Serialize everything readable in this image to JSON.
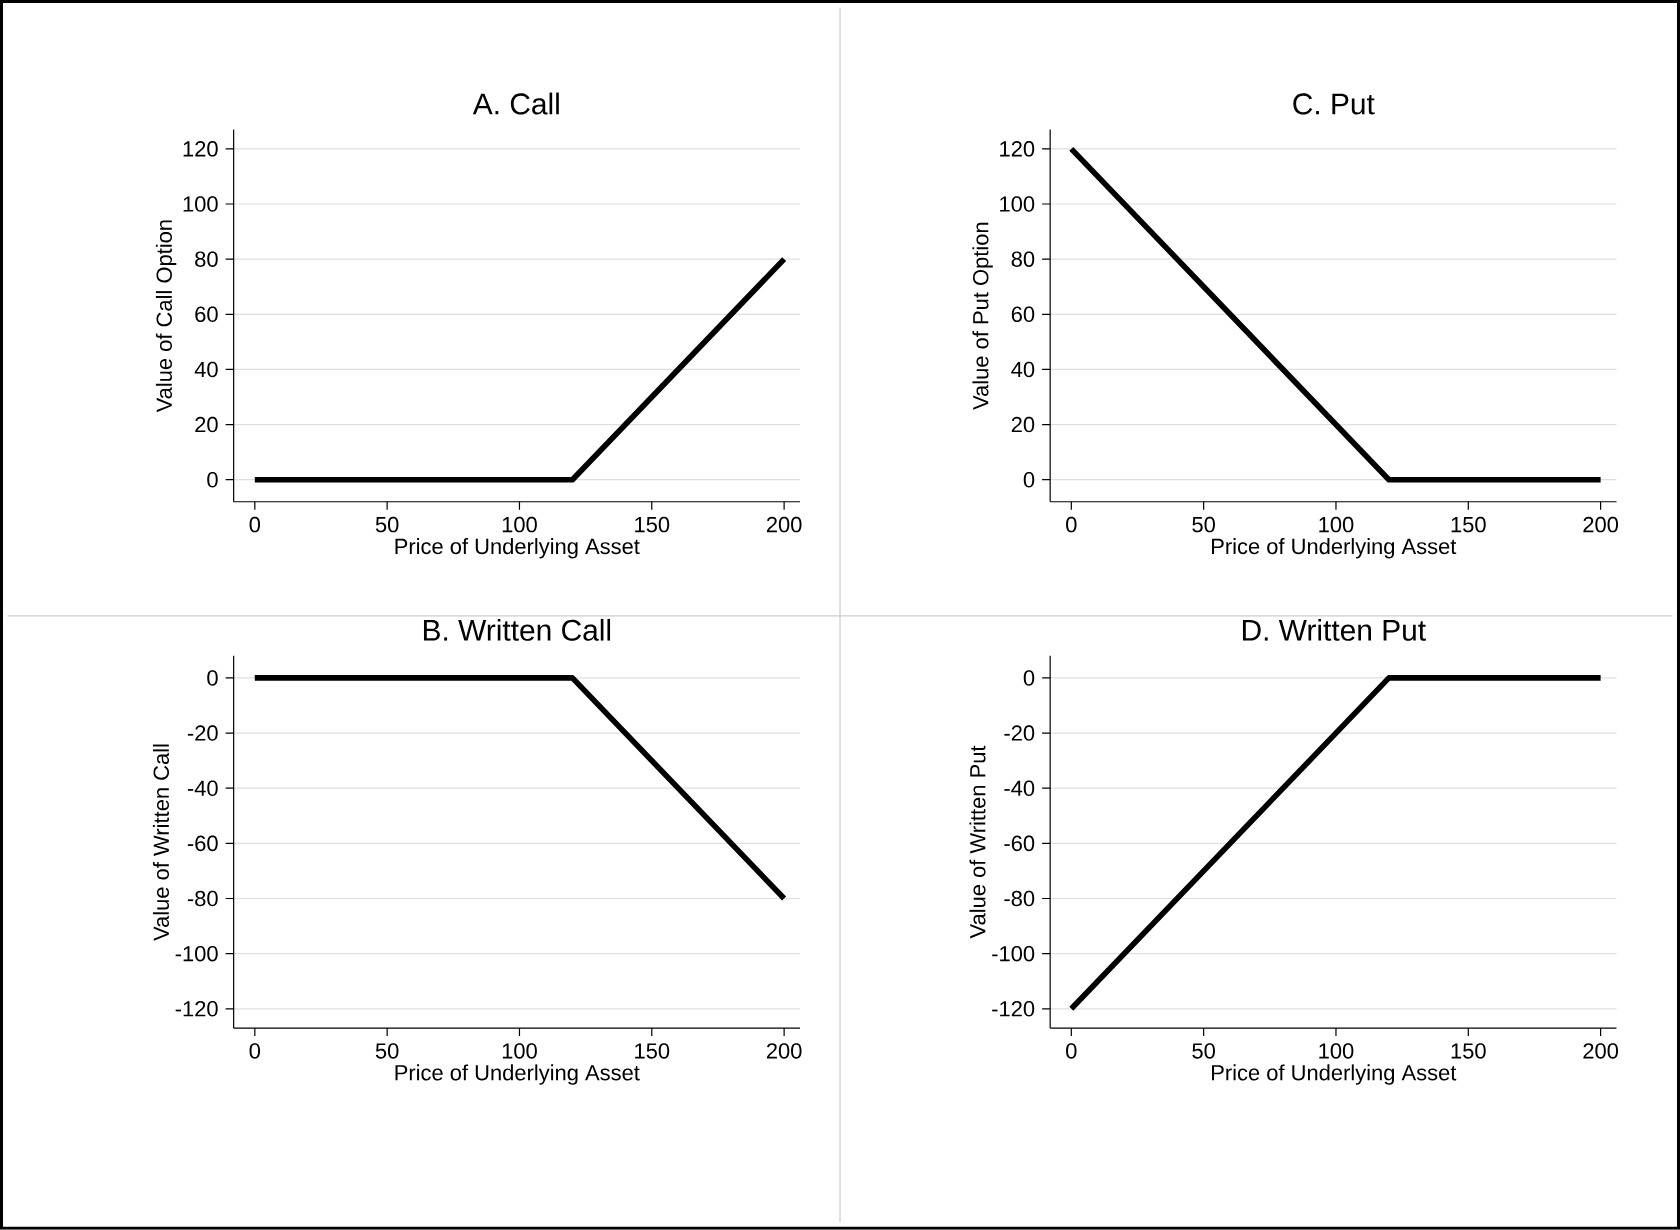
{
  "chart_data": [
    {
      "type": "line",
      "title": "A. Call",
      "xlabel": "Price of Underlying Asset",
      "ylabel": "Value of Call Option",
      "x": [
        0,
        120,
        200
      ],
      "values": [
        0,
        0,
        80
      ],
      "color": "#000000",
      "xlim": [
        -8,
        206
      ],
      "ylim": [
        -8,
        127
      ],
      "xticks": [
        0,
        50,
        100,
        150,
        200
      ],
      "yticks": [
        0,
        20,
        40,
        60,
        80,
        100,
        120
      ],
      "grid": "y",
      "marker": "none",
      "line_style": "solid"
    },
    {
      "type": "line",
      "title": "C. Put",
      "xlabel": "Price of Underlying Asset",
      "ylabel": "Value of Put Option",
      "x": [
        0,
        120,
        200
      ],
      "values": [
        120,
        0,
        0
      ],
      "color": "#000000",
      "xlim": [
        -8,
        206
      ],
      "ylim": [
        -8,
        127
      ],
      "xticks": [
        0,
        50,
        100,
        150,
        200
      ],
      "yticks": [
        0,
        20,
        40,
        60,
        80,
        100,
        120
      ],
      "grid": "y",
      "marker": "none",
      "line_style": "solid"
    },
    {
      "type": "line",
      "title": "B. Written Call",
      "xlabel": "Price of Underlying Asset",
      "ylabel": "Value of Written Call",
      "x": [
        0,
        120,
        200
      ],
      "values": [
        0,
        0,
        -80
      ],
      "color": "#000000",
      "xlim": [
        -8,
        206
      ],
      "ylim": [
        -127,
        8
      ],
      "xticks": [
        0,
        50,
        100,
        150,
        200
      ],
      "yticks": [
        -120,
        -100,
        -80,
        -60,
        -40,
        -20,
        0
      ],
      "grid": "y",
      "marker": "none",
      "line_style": "solid"
    },
    {
      "type": "line",
      "title": "D. Written Put",
      "xlabel": "Price of Underlying Asset",
      "ylabel": "Value of Written Put",
      "x": [
        0,
        120,
        200
      ],
      "values": [
        -120,
        0,
        0
      ],
      "color": "#000000",
      "xlim": [
        -8,
        206
      ],
      "ylim": [
        -127,
        8
      ],
      "xticks": [
        0,
        50,
        100,
        150,
        200
      ],
      "yticks": [
        -120,
        -100,
        -80,
        -60,
        -40,
        -20,
        0
      ],
      "grid": "y",
      "marker": "none",
      "line_style": "solid"
    }
  ]
}
